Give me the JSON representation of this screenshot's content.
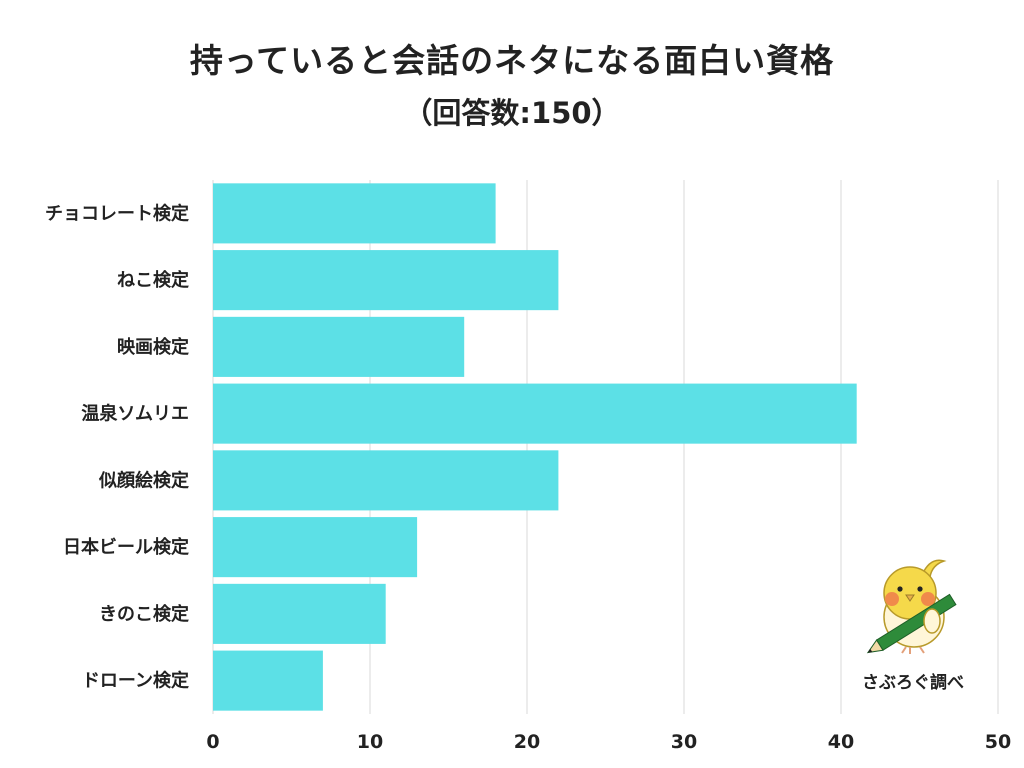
{
  "chart_data": {
    "type": "bar",
    "orientation": "horizontal",
    "title": "持っていると会話のネタになる面白い資格",
    "subtitle": "（回答数:150）",
    "categories": [
      "チョコレート検定",
      "ねこ検定",
      "映画検定",
      "温泉ソムリエ",
      "似顔絵検定",
      "日本ビール検定",
      "きのこ検定",
      "ドローン検定"
    ],
    "values": [
      18,
      22,
      16,
      41,
      22,
      13,
      11,
      7
    ],
    "xlim": [
      0,
      50
    ],
    "xticks": [
      0,
      10,
      20,
      30,
      40,
      50
    ],
    "grid": true,
    "bar_color": "#5ce0e6",
    "grid_color": "#d9d9d9"
  },
  "credit": "さぶろぐ調べ"
}
